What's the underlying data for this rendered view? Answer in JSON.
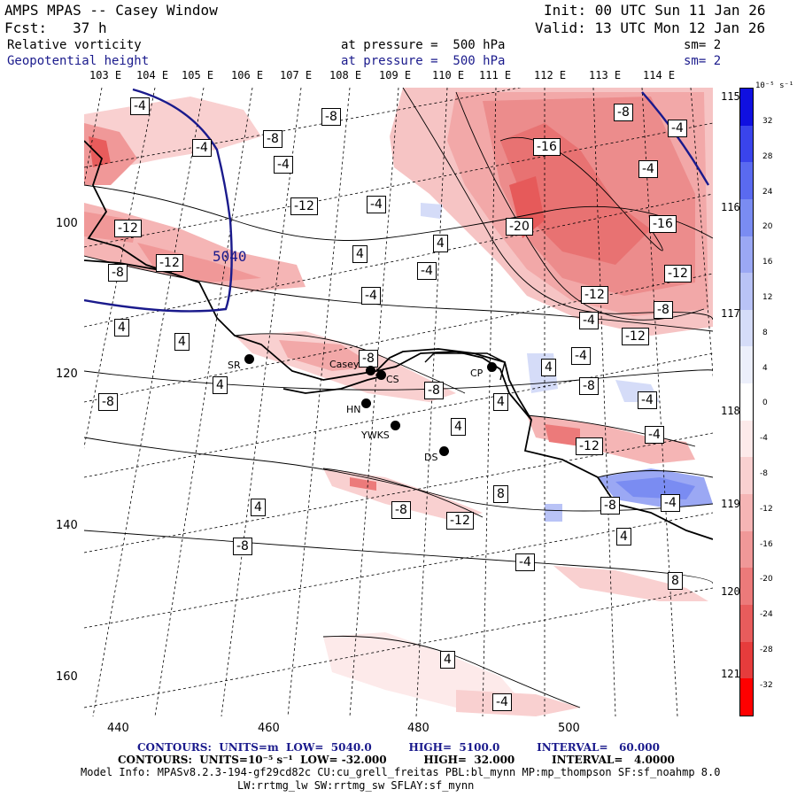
{
  "header": {
    "title": "AMPS MPAS -- Casey Window",
    "init": "Init: 00 UTC Sun 11 Jan 26",
    "forecast": "Fcst:   37 h",
    "valid": "Valid: 13 UTC Mon 12 Jan 26",
    "field1": "Relative vorticity",
    "field1_level": "at pressure =  500 hPa",
    "field1_sm": "sm= 2",
    "field2": "Geopotential height",
    "field2_level": "at pressure =  500 hPa",
    "field2_sm": "sm= 2"
  },
  "top_longitudes": [
    "103 E",
    "104 E",
    "105 E",
    "106 E",
    "107 E",
    "108 E",
    "109 E",
    "110 E",
    "111 E",
    "112 E",
    "113 E",
    "114 E"
  ],
  "right_longitudes": [
    "115 E",
    "116 E",
    "117 E",
    "118 E",
    "119 E",
    "120 E",
    "121 E"
  ],
  "left_axis": [
    "100",
    "120",
    "140",
    "160"
  ],
  "bottom_axis": [
    "440",
    "460",
    "480",
    "500"
  ],
  "stations": [
    {
      "id": "SR",
      "label": "SR"
    },
    {
      "id": "Casey",
      "label": "Casey"
    },
    {
      "id": "CS",
      "label": "CS"
    },
    {
      "id": "CP",
      "label": "CP"
    },
    {
      "id": "HN",
      "label": "HN"
    },
    {
      "id": "YWKS",
      "label": "YWKS"
    },
    {
      "id": "DS",
      "label": "DS"
    }
  ],
  "contour_labels": [
    "-8",
    "4",
    "-8",
    "-4",
    "-4",
    "-16",
    "-8",
    "-4",
    "-12",
    "-4",
    "-4",
    "-12",
    "-20",
    "-16",
    "4",
    "4",
    "-12",
    "-12",
    "-8",
    "-4",
    "-4",
    "-12",
    "-8",
    "4",
    "-4",
    "-12",
    "4",
    "-4",
    "-8",
    "4",
    "-8",
    "4",
    "-8",
    "4",
    "-8",
    "-4",
    "4",
    "-8",
    "-12",
    "-4",
    "4",
    "8",
    "-8",
    "-12",
    "-4",
    "4",
    "-8",
    "-4",
    "8",
    "4",
    "-4",
    "-4",
    "-8",
    "-4",
    "-8"
  ],
  "height_label": "5040",
  "colorbar": {
    "units": "10⁻⁵ s⁻¹",
    "levels": [
      "32",
      "28",
      "24",
      "20",
      "16",
      "12",
      "8",
      "4",
      "0",
      "-4",
      "-8",
      "-12",
      "-16",
      "-20",
      "-24",
      "-28",
      "-32"
    ],
    "colors": [
      "#1010e0",
      "#3a44ec",
      "#5a6af0",
      "#7a8cf2",
      "#9ba8f4",
      "#b9c3f6",
      "#d5dcf8",
      "#eceffb",
      "#ffffff",
      "#fdeaea",
      "#f9d0d0",
      "#f5b5b5",
      "#f09898",
      "#ec7a7a",
      "#e85c5c",
      "#e63c3c",
      "#ff0000"
    ]
  },
  "footer": {
    "line1": "CONTOURS:  UNITS=m  LOW=  5040.0          HIGH=  5100.0          INTERVAL=   60.000",
    "line2": "CONTOURS:  UNITS=10⁻⁵ s⁻¹  LOW= -32.000          HIGH=  32.000          INTERVAL=   4.0000",
    "line3": "Model Info: MPASv8.2.3-194-gf29cd82c CU:cu_grell_freitas PBL:bl_mynn MP:mp_thompson SF:sf_noahmp 8.0",
    "line4": "LW:rrtmg_lw SW:rrtmg_sw SFLAY:sf_mynn"
  }
}
